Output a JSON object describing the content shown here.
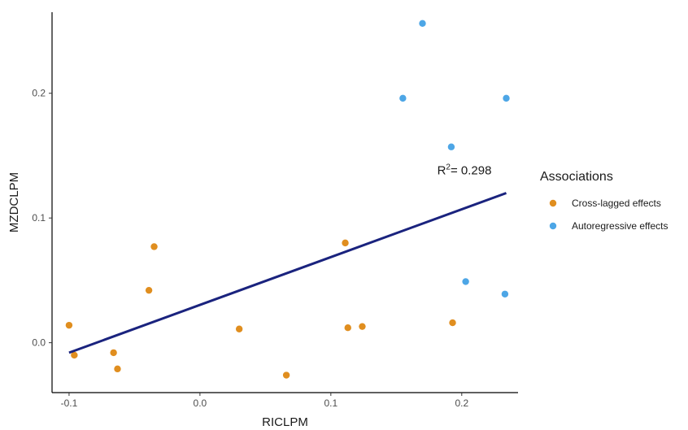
{
  "chart_data": {
    "type": "scatter",
    "xlabel": "RICLPM",
    "ylabel": "MZDCLPM",
    "xlim": [
      -0.113,
      0.243
    ],
    "ylim": [
      -0.04,
      0.265
    ],
    "x_ticks": [
      -0.1,
      0.0,
      0.1,
      0.2
    ],
    "x_tick_labels": [
      "-0.1",
      "0.0",
      "0.1",
      "0.2"
    ],
    "y_ticks": [
      0.0,
      0.1,
      0.2
    ],
    "y_tick_labels": [
      "0.0",
      "0.1",
      "0.2"
    ],
    "grid": false,
    "legend": {
      "title": "Associations",
      "position": "right"
    },
    "series": [
      {
        "name": "Cross-lagged effects",
        "color": "#E08E1F",
        "points": [
          {
            "x": -0.1,
            "y": 0.014
          },
          {
            "x": -0.096,
            "y": -0.01
          },
          {
            "x": -0.066,
            "y": -0.008
          },
          {
            "x": -0.063,
            "y": -0.021
          },
          {
            "x": -0.039,
            "y": 0.042
          },
          {
            "x": -0.035,
            "y": 0.077
          },
          {
            "x": 0.03,
            "y": 0.011
          },
          {
            "x": 0.066,
            "y": -0.026
          },
          {
            "x": 0.111,
            "y": 0.08
          },
          {
            "x": 0.113,
            "y": 0.012
          },
          {
            "x": 0.124,
            "y": 0.013
          },
          {
            "x": 0.193,
            "y": 0.016
          }
        ]
      },
      {
        "name": "Autoregressive effects",
        "color": "#4DA6E6",
        "points": [
          {
            "x": 0.155,
            "y": 0.196
          },
          {
            "x": 0.17,
            "y": 0.256
          },
          {
            "x": 0.192,
            "y": 0.157
          },
          {
            "x": 0.203,
            "y": 0.049
          },
          {
            "x": 0.233,
            "y": 0.039
          },
          {
            "x": 0.234,
            "y": 0.196
          }
        ]
      }
    ],
    "regression_line": {
      "color": "#1A237E",
      "x": [
        -0.1,
        0.234
      ],
      "y": [
        -0.008,
        0.12
      ]
    },
    "annotation": {
      "text_prefix": "R",
      "text_sup": "2",
      "text_rest": "= 0.298",
      "x": 0.202,
      "y": 0.135
    }
  }
}
